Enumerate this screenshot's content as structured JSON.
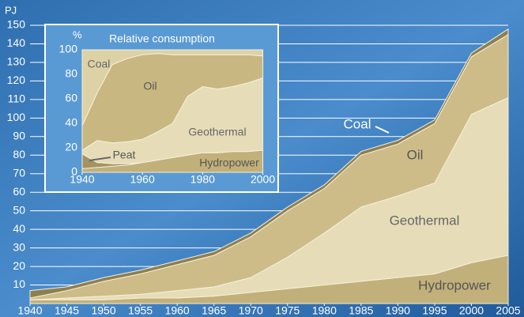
{
  "chart_data": [
    {
      "type": "area",
      "ylabel": "PJ",
      "x": [
        1940,
        1945,
        1950,
        1955,
        1960,
        1965,
        1970,
        1975,
        1980,
        1985,
        1990,
        1995,
        2000,
        2005
      ],
      "series": [
        {
          "name": "Hydropower",
          "color": "#c2b07a",
          "values": [
            2,
            2,
            2,
            3,
            3,
            4,
            6,
            8,
            10,
            12,
            14,
            16,
            22,
            26
          ]
        },
        {
          "name": "Geothermal",
          "color": "#e6ddb8",
          "values": [
            0,
            1,
            2,
            2,
            4,
            5,
            8,
            17,
            28,
            40,
            44,
            49,
            80,
            85
          ]
        },
        {
          "name": "Oil",
          "color": "#cdbc88",
          "values": [
            1,
            4,
            8,
            11,
            14,
            17,
            22,
            25,
            24,
            28,
            28,
            32,
            31,
            34
          ]
        },
        {
          "name": "Coal",
          "color": "#8e7e50",
          "values": [
            4,
            2,
            2,
            2,
            2,
            2,
            2,
            2,
            2,
            2,
            2,
            2,
            2,
            3
          ]
        }
      ],
      "xlim": [
        1940,
        2005
      ],
      "xticks": [
        1940,
        1945,
        1950,
        1955,
        1960,
        1965,
        1970,
        1975,
        1980,
        1985,
        1990,
        1995,
        2000,
        2005
      ],
      "ylim": [
        0,
        150
      ],
      "yticks": [
        10,
        20,
        30,
        40,
        50,
        60,
        70,
        80,
        90,
        100,
        110,
        120,
        130,
        140,
        150
      ],
      "grid": true
    },
    {
      "type": "area",
      "title": "Relative consumption",
      "ylabel": "%",
      "x": [
        1940,
        1945,
        1950,
        1955,
        1960,
        1965,
        1970,
        1975,
        1980,
        1985,
        1990,
        1995,
        2000
      ],
      "series": [
        {
          "name": "Hydropower",
          "color": "#c2b07a",
          "values": [
            3,
            4,
            5,
            6,
            8,
            10,
            12,
            14,
            16,
            16,
            17,
            17,
            18
          ]
        },
        {
          "name": "Peat",
          "color": "#a39263",
          "values": [
            12,
            4,
            2,
            1,
            0,
            0,
            0,
            0,
            0,
            0,
            0,
            0,
            0
          ]
        },
        {
          "name": "Geothermal",
          "color": "#e6ddb8",
          "values": [
            3,
            18,
            17,
            18,
            19,
            23,
            28,
            48,
            54,
            52,
            53,
            56,
            59
          ]
        },
        {
          "name": "Oil",
          "color": "#c9b782",
          "values": [
            20,
            39,
            64,
            68,
            69,
            64,
            56,
            34,
            26,
            28,
            26,
            23,
            18
          ]
        },
        {
          "name": "Coal",
          "color": "#ddd2a6",
          "values": [
            62,
            35,
            12,
            7,
            4,
            3,
            4,
            4,
            4,
            4,
            4,
            4,
            5
          ]
        }
      ],
      "xlim": [
        1940,
        2003
      ],
      "xticks": [
        1940,
        1960,
        1980,
        2000
      ],
      "ylim": [
        0,
        100
      ],
      "yticks": [
        0,
        20,
        40,
        60,
        80,
        100
      ],
      "grid": false
    }
  ]
}
